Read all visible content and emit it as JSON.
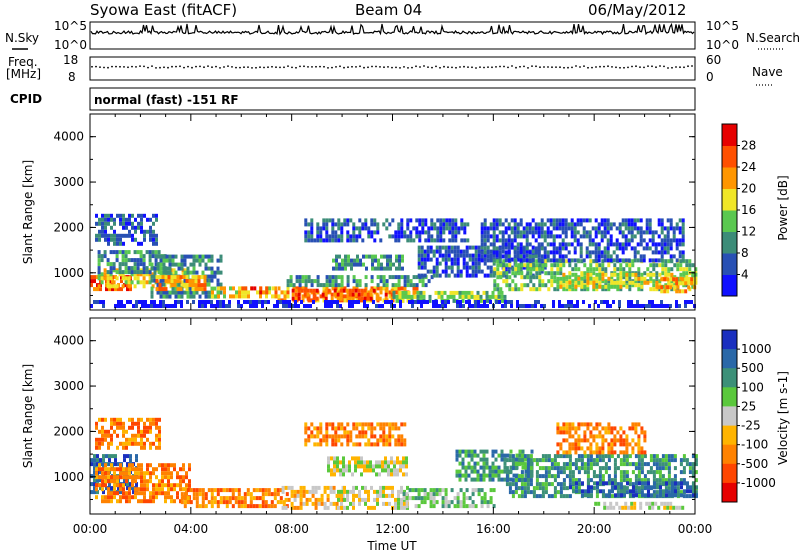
{
  "header": {
    "station": "Syowa East (fitACF)",
    "beam": "Beam 04",
    "date": "06/May/2012"
  },
  "top_panels": {
    "nsky_label": "N.Sky",
    "nsky_max": "10^5",
    "nsky_min": "10^0",
    "nsearch_label": "N.Search",
    "nsearch_max": "10^5",
    "nsearch_min": "10^0",
    "freq_label_1": "Freq.",
    "freq_label_2": "[MHz]",
    "freq_max": "18",
    "freq_min": "8",
    "nave_label": "Nave",
    "nave_max": "60",
    "nave_min": "0",
    "cpid_label": "CPID",
    "cpid_value": "normal (fast) -151 RF"
  },
  "chart_data": [
    {
      "type": "heatmap",
      "panel": "power",
      "ylabel": "Slant Range [km]",
      "xlabel": "Time UT",
      "ylim": [
        180,
        4500
      ],
      "xlim": [
        0,
        24
      ],
      "y_ticks": [
        "1000",
        "2000",
        "3000",
        "4000"
      ],
      "x_ticks": [
        "00:00",
        "04:00",
        "08:00",
        "12:00",
        "16:00",
        "20:00",
        "00:00"
      ],
      "colorbar_label": "Power [dB]",
      "colorbar_ticks": [
        "4",
        "8",
        "12",
        "16",
        "20",
        "24",
        "28"
      ],
      "colorbar_colors": [
        "#1010ff",
        "#2850b4",
        "#3c8c78",
        "#5ac850",
        "#f0e628",
        "#ff9600",
        "#ff5000",
        "#e60000"
      ],
      "bands": [
        {
          "t0": 0.0,
          "t1": 1.6,
          "r0": 650,
          "r1": 950,
          "level": 6
        },
        {
          "t0": 0.3,
          "t1": 3.8,
          "r0": 700,
          "r1": 1100,
          "level": 4
        },
        {
          "t0": 0.3,
          "t1": 3.0,
          "r0": 1000,
          "r1": 1500,
          "level": 2
        },
        {
          "t0": 0.2,
          "t1": 2.6,
          "r0": 1600,
          "r1": 2300,
          "level": 1
        },
        {
          "t0": 2.4,
          "t1": 5.2,
          "r0": 500,
          "r1": 1400,
          "level": 2
        },
        {
          "t0": 2.6,
          "t1": 4.6,
          "r0": 650,
          "r1": 950,
          "level": 5
        },
        {
          "t0": 4.8,
          "t1": 7.4,
          "r0": 450,
          "r1": 700,
          "level": 4
        },
        {
          "t0": 6.0,
          "t1": 7.0,
          "r0": 550,
          "r1": 700,
          "level": 6
        },
        {
          "t0": 7.2,
          "t1": 13.0,
          "r0": 400,
          "r1": 700,
          "level": 5
        },
        {
          "t0": 8.0,
          "t1": 12.0,
          "r0": 450,
          "r1": 650,
          "level": 6
        },
        {
          "t0": 7.8,
          "t1": 13.6,
          "r0": 700,
          "r1": 950,
          "level": 2
        },
        {
          "t0": 9.6,
          "t1": 12.4,
          "r0": 1100,
          "r1": 1400,
          "level": 2
        },
        {
          "t0": 12.0,
          "t1": 16.5,
          "r0": 380,
          "r1": 600,
          "level": 3
        },
        {
          "t0": 13.0,
          "t1": 18.0,
          "r0": 900,
          "r1": 1600,
          "level": 1
        },
        {
          "t0": 16.0,
          "t1": 24.0,
          "r0": 600,
          "r1": 1300,
          "level": 3
        },
        {
          "t0": 18.5,
          "t1": 24.0,
          "r0": 700,
          "r1": 1000,
          "level": 4
        },
        {
          "t0": 22.5,
          "t1": 24.0,
          "r0": 550,
          "r1": 900,
          "level": 5
        },
        {
          "t0": 15.5,
          "t1": 23.5,
          "r0": 1300,
          "r1": 2200,
          "level": 1
        },
        {
          "t0": 8.5,
          "t1": 15.0,
          "r0": 1700,
          "r1": 2200,
          "level": 1
        },
        {
          "t0": 0.0,
          "t1": 24.0,
          "r0": 250,
          "r1": 400,
          "level": 0
        }
      ]
    },
    {
      "type": "heatmap",
      "panel": "velocity",
      "ylabel": "Slant Range [km]",
      "xlabel": "Time UT",
      "ylim": [
        180,
        4500
      ],
      "xlim": [
        0,
        24
      ],
      "y_ticks": [
        "1000",
        "2000",
        "3000",
        "4000"
      ],
      "x_ticks": [
        "00:00",
        "04:00",
        "08:00",
        "12:00",
        "16:00",
        "20:00",
        "00:00"
      ],
      "colorbar_label": "Velocity [m s-1]",
      "colorbar_ticks": [
        "1000",
        "500",
        "100",
        "25",
        "-25",
        "-100",
        "-500",
        "-1000"
      ],
      "colorbar_colors": [
        "#1a2fbf",
        "#2a68a8",
        "#3c9078",
        "#5ac83c",
        "#c8c8c8",
        "#ffb400",
        "#ff8200",
        "#ff4600",
        "#e60000"
      ],
      "bands": [
        {
          "t0": 0.0,
          "t1": 1.8,
          "r0": 700,
          "r1": 1500,
          "level": 1
        },
        {
          "t0": 0.2,
          "t1": 4.0,
          "r0": 500,
          "r1": 1300,
          "level": 6
        },
        {
          "t0": 0.2,
          "t1": 2.8,
          "r0": 1600,
          "r1": 2300,
          "level": 6
        },
        {
          "t0": 3.6,
          "t1": 7.8,
          "r0": 350,
          "r1": 750,
          "level": 6
        },
        {
          "t0": 7.6,
          "t1": 10.0,
          "r0": 300,
          "r1": 800,
          "level": 5
        },
        {
          "t0": 9.8,
          "t1": 12.6,
          "r0": 350,
          "r1": 800,
          "level": 4
        },
        {
          "t0": 9.4,
          "t1": 12.6,
          "r0": 1050,
          "r1": 1450,
          "level": 4
        },
        {
          "t0": 12.4,
          "t1": 16.0,
          "r0": 350,
          "r1": 750,
          "level": 3
        },
        {
          "t0": 14.5,
          "t1": 17.5,
          "r0": 900,
          "r1": 1600,
          "level": 2
        },
        {
          "t0": 16.5,
          "t1": 24.0,
          "r0": 600,
          "r1": 1500,
          "level": 2
        },
        {
          "t0": 19.0,
          "t1": 24.0,
          "r0": 600,
          "r1": 900,
          "level": 1
        },
        {
          "t0": 18.5,
          "t1": 22.0,
          "r0": 1500,
          "r1": 2200,
          "level": 6
        },
        {
          "t0": 20.0,
          "t1": 23.5,
          "r0": 300,
          "r1": 450,
          "level": 4
        },
        {
          "t0": 8.5,
          "t1": 12.5,
          "r0": 1700,
          "r1": 2200,
          "level": 6
        }
      ]
    }
  ]
}
